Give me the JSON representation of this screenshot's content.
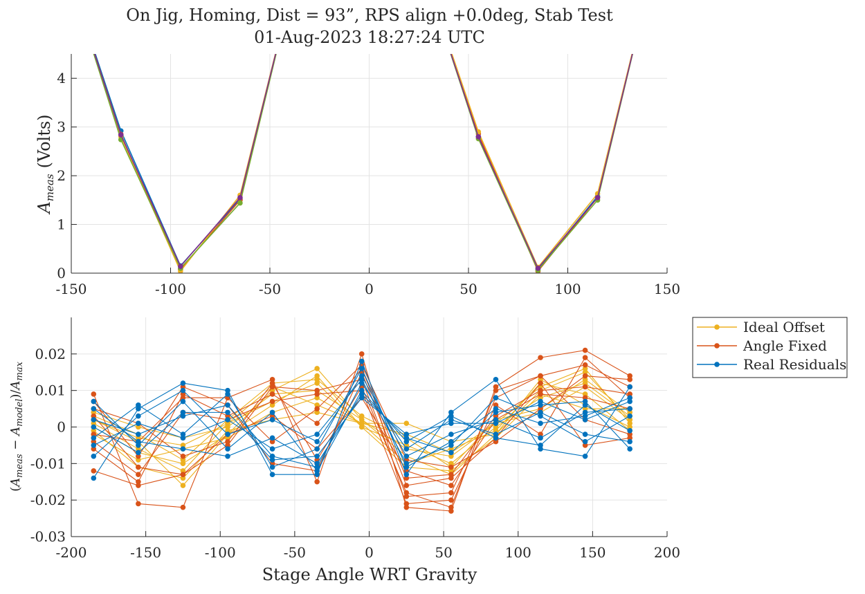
{
  "figure": {
    "title_line1": "On Jig, Homing, Dist = 93”, RPS align +0.0deg, Stab Test",
    "title_line2": "01-Aug-2023 18:27:24 UTC"
  },
  "chart_data": [
    {
      "id": "top",
      "type": "line",
      "title": "On Jig, Homing, Dist = 93”, RPS align +0.0deg, Stab Test — 01-Aug-2023 18:27:24 UTC",
      "xlabel": "",
      "ylabel_main": "A",
      "ylabel_sub": "meas",
      "ylabel_unit": "(Volts)",
      "xlim": [
        -150,
        150
      ],
      "ylim": [
        0,
        4.5
      ],
      "grid": true,
      "x_ticks": [
        -150,
        -100,
        -50,
        0,
        50,
        100,
        150
      ],
      "x_tick_labels": [
        "-150",
        "-100",
        "-50",
        "0",
        "50",
        "100",
        "150"
      ],
      "y_ticks": [
        0,
        1,
        2,
        3,
        4
      ],
      "y_tick_labels": [
        "0",
        "1",
        "2",
        "3",
        "4"
      ],
      "series": [
        {
          "color": "#0072BD",
          "x": [
            -155,
            -125,
            -95,
            -65,
            -35,
            25,
            55,
            85,
            115,
            145
          ],
          "y": [
            6.6,
            2.92,
            0.15,
            1.52,
            6.5,
            6.5,
            2.8,
            0.08,
            1.58,
            6.6
          ]
        },
        {
          "color": "#D95319",
          "x": [
            -155,
            -125,
            -95,
            -65,
            -35,
            25,
            55,
            85,
            115,
            145
          ],
          "y": [
            6.6,
            2.85,
            0.08,
            1.5,
            6.5,
            6.5,
            2.86,
            0.04,
            1.55,
            6.6
          ]
        },
        {
          "color": "#EDB120",
          "x": [
            -155,
            -125,
            -95,
            -65,
            -35,
            25,
            55,
            85,
            115,
            145
          ],
          "y": [
            6.6,
            2.8,
            0.04,
            1.6,
            6.5,
            6.5,
            2.9,
            0.12,
            1.63,
            6.6
          ]
        },
        {
          "color": "#77AC30",
          "x": [
            -155,
            -125,
            -95,
            -65,
            -35,
            25,
            55,
            85,
            115,
            145
          ],
          "y": [
            6.6,
            2.74,
            0.1,
            1.44,
            6.5,
            6.5,
            2.76,
            0.06,
            1.5,
            6.6
          ]
        },
        {
          "color": "#7E2F8E",
          "x": [
            -155,
            -125,
            -95,
            -65,
            -35,
            25,
            55,
            85,
            115,
            145
          ],
          "y": [
            6.6,
            2.84,
            0.14,
            1.55,
            6.5,
            6.5,
            2.8,
            0.1,
            1.55,
            6.6
          ]
        }
      ]
    },
    {
      "id": "bottom",
      "type": "line",
      "xlabel": "Stage Angle WRT Gravity",
      "ylabel": "(A_meas − A_model)/A_max",
      "xlim": [
        -200,
        200
      ],
      "ylim": [
        -0.03,
        0.03
      ],
      "grid": true,
      "x_ticks": [
        -200,
        -150,
        -100,
        -50,
        0,
        50,
        100,
        150,
        200
      ],
      "x_tick_labels": [
        "-200",
        "-150",
        "-100",
        "-50",
        "0",
        "50",
        "100",
        "150",
        "200"
      ],
      "y_ticks": [
        -0.03,
        -0.02,
        -0.01,
        0,
        0.01,
        0.02
      ],
      "y_tick_labels": [
        "-0.03",
        "-0.02",
        "-0.01",
        "0",
        "0.01",
        "0.02"
      ],
      "legend_position": "outside-right",
      "x": [
        -185,
        -155,
        -125,
        -95,
        -65,
        -35,
        -5,
        25,
        55,
        85,
        115,
        145,
        175
      ],
      "series": [
        {
          "name": "Ideal Offset",
          "color": "#EDB120",
          "traces": [
            [
              0.002,
              -0.004,
              -0.016,
              -0.002,
              0.01,
              0.016,
              0.002,
              -0.008,
              -0.013,
              -0.002,
              0.01,
              0.015,
              0.002
            ],
            [
              0.001,
              -0.006,
              -0.012,
              0.001,
              0.007,
              0.012,
              0.0,
              -0.005,
              -0.01,
              0.0,
              0.008,
              0.012,
              0.003
            ],
            [
              -0.002,
              -0.009,
              -0.006,
              -0.003,
              0.004,
              0.008,
              0.001,
              -0.01,
              -0.006,
              -0.001,
              0.012,
              0.009,
              -0.001
            ],
            [
              0.003,
              -0.002,
              -0.009,
              0.002,
              0.012,
              0.013,
              0.003,
              -0.003,
              -0.011,
              0.002,
              0.005,
              0.013,
              0.004
            ],
            [
              -0.001,
              -0.011,
              -0.014,
              -0.001,
              0.002,
              0.004,
              0.001,
              0.001,
              -0.004,
              -0.002,
              0.013,
              0.006,
              0.0
            ],
            [
              0.004,
              0.0,
              -0.003,
              0.0,
              0.009,
              0.01,
              0.002,
              -0.006,
              -0.008,
              0.001,
              0.004,
              0.011,
              0.002
            ],
            [
              0.0,
              -0.007,
              -0.01,
              -0.002,
              0.006,
              0.014,
              0.0,
              -0.011,
              -0.012,
              -0.003,
              0.009,
              0.005,
              0.005
            ],
            [
              0.002,
              -0.003,
              -0.005,
              0.001,
              0.011,
              0.006,
              0.001,
              -0.002,
              -0.007,
              0.001,
              0.011,
              0.016,
              0.001
            ]
          ]
        },
        {
          "name": "Angle Fixed",
          "color": "#D95319",
          "traces": [
            [
              0.009,
              -0.021,
              -0.022,
              0.008,
              0.013,
              -0.015,
              0.02,
              -0.022,
              -0.023,
              0.011,
              0.019,
              0.021,
              0.014
            ],
            [
              -0.012,
              -0.016,
              -0.013,
              -0.005,
              0.011,
              0.01,
              0.013,
              -0.019,
              -0.018,
              0.008,
              0.014,
              0.017,
              0.011
            ],
            [
              0.007,
              -0.008,
              0.011,
              0.006,
              -0.01,
              -0.012,
              0.015,
              -0.016,
              -0.014,
              -0.003,
              0.012,
              -0.005,
              -0.003
            ],
            [
              -0.004,
              -0.013,
              0.004,
              0.002,
              0.007,
              0.009,
              0.01,
              -0.021,
              -0.02,
              0.006,
              -0.002,
              0.019,
              0.008
            ],
            [
              0.003,
              -0.011,
              -0.013,
              -0.002,
              0.003,
              -0.006,
              0.008,
              -0.012,
              -0.016,
              0.002,
              0.009,
              0.008,
              0.005
            ],
            [
              -0.002,
              -0.004,
              0.008,
              0.008,
              -0.004,
              0.005,
              0.017,
              -0.009,
              -0.011,
              -0.004,
              0.005,
              0.014,
              0.013
            ],
            [
              0.005,
              0.001,
              -0.008,
              -0.004,
              0.012,
              -0.009,
              0.011,
              -0.018,
              -0.022,
              0.01,
              0.014,
              0.002,
              -0.002
            ],
            [
              -0.006,
              -0.015,
              0.009,
              0.003,
              0.009,
              0.001,
              0.016,
              -0.014,
              -0.013,
              0.003,
              0.01,
              0.011,
              0.009
            ]
          ]
        },
        {
          "name": "Real Residuals",
          "color": "#0072BD",
          "traces": [
            [
              -0.014,
              0.005,
              0.012,
              0.01,
              -0.013,
              -0.013,
              0.018,
              -0.013,
              0.004,
              0.013,
              -0.006,
              -0.008,
              0.011
            ],
            [
              0.005,
              -0.004,
              -0.006,
              -0.008,
              -0.003,
              -0.01,
              0.009,
              -0.003,
              -0.007,
              0.004,
              0.006,
              0.007,
              -0.006
            ],
            [
              -0.008,
              0.003,
              0.01,
              -0.002,
              0.002,
              -0.004,
              0.014,
              -0.008,
              -0.002,
              0.002,
              -0.003,
              0.004,
              0.005
            ],
            [
              0.002,
              -0.002,
              0.003,
              0.006,
              -0.008,
              -0.011,
              0.012,
              -0.006,
              0.002,
              -0.002,
              0.004,
              -0.002,
              -0.004
            ],
            [
              -0.003,
              0.006,
              -0.002,
              0.009,
              -0.011,
              -0.006,
              0.016,
              -0.011,
              -0.004,
              0.005,
              0.001,
              0.003,
              0.008
            ],
            [
              0.007,
              -0.005,
              0.007,
              -0.006,
              0.004,
              -0.012,
              0.01,
              -0.004,
              0.003,
              -0.003,
              -0.005,
              0.006,
              -0.001
            ],
            [
              -0.005,
              0.001,
              -0.003,
              0.002,
              -0.006,
              -0.002,
              0.013,
              -0.01,
              -0.005,
              0.008,
              0.003,
              -0.004,
              0.003
            ],
            [
              0.0,
              -0.007,
              0.004,
              0.004,
              -0.009,
              -0.008,
              0.008,
              -0.002,
              0.001,
              0.001,
              0.007,
              0.002,
              0.007
            ]
          ]
        }
      ]
    }
  ]
}
